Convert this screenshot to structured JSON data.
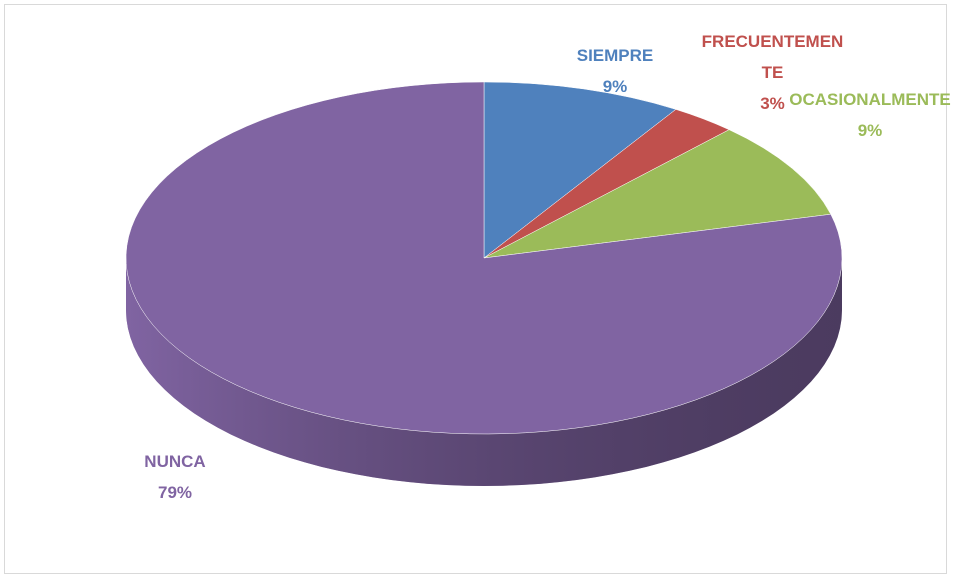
{
  "chart_data": {
    "type": "pie3d",
    "categories": [
      "SIEMPRE",
      "FRECUENTEMENTE",
      "OCASIONALMENTE",
      "NUNCA"
    ],
    "values": [
      9,
      3,
      9,
      79
    ],
    "value_labels": [
      "9%",
      "3%",
      "9%",
      "79%"
    ],
    "colors": [
      "#4f81bd",
      "#c0504d",
      "#9bbb59",
      "#8064a2"
    ]
  }
}
